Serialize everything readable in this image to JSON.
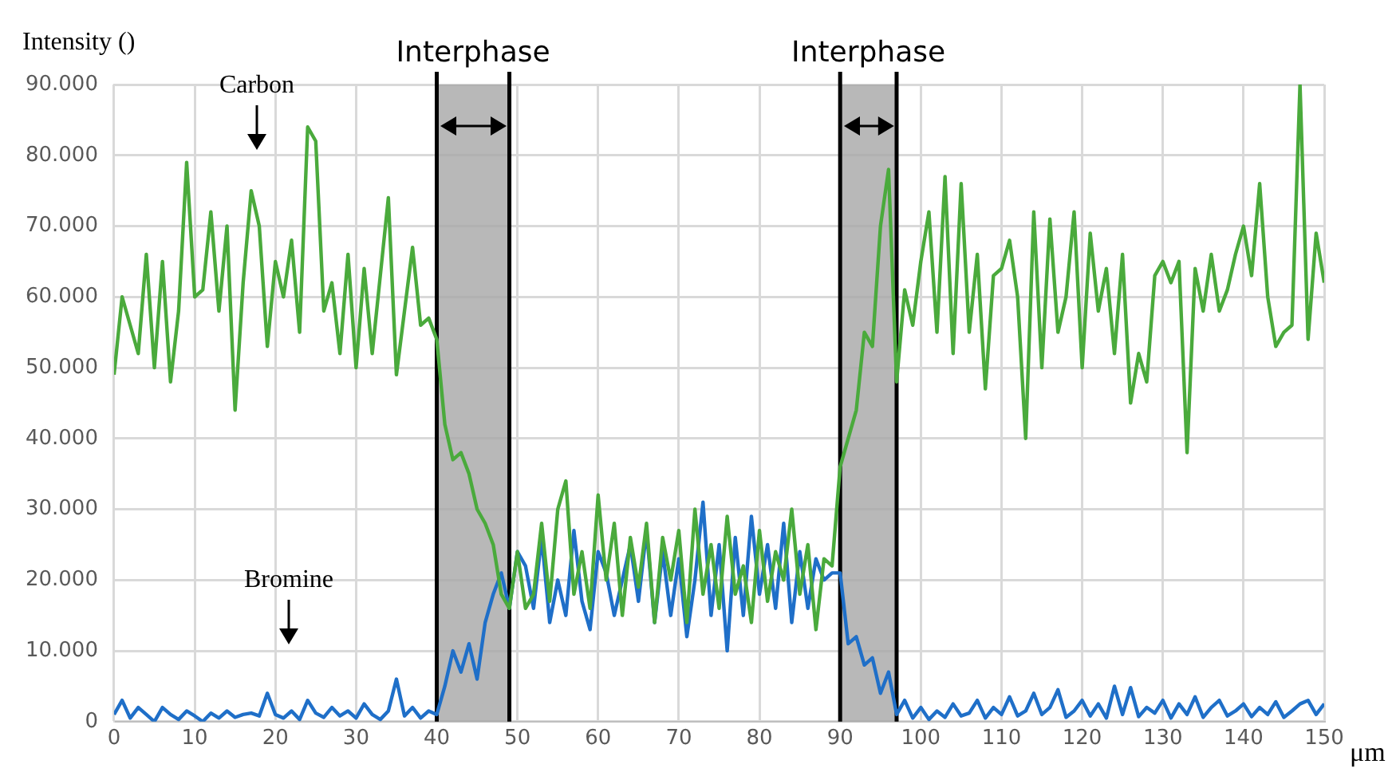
{
  "chart_data": {
    "type": "line",
    "ylabel": "Intensity ()",
    "xlabel": "μm",
    "x": [
      0,
      1,
      2,
      3,
      4,
      5,
      6,
      7,
      8,
      9,
      10,
      11,
      12,
      13,
      14,
      15,
      16,
      17,
      18,
      19,
      20,
      21,
      22,
      23,
      24,
      25,
      26,
      27,
      28,
      29,
      30,
      31,
      32,
      33,
      34,
      35,
      36,
      37,
      38,
      39,
      40,
      41,
      42,
      43,
      44,
      45,
      46,
      47,
      48,
      49,
      50,
      51,
      52,
      53,
      54,
      55,
      56,
      57,
      58,
      59,
      60,
      61,
      62,
      63,
      64,
      65,
      66,
      67,
      68,
      69,
      70,
      71,
      72,
      73,
      74,
      75,
      76,
      77,
      78,
      79,
      80,
      81,
      82,
      83,
      84,
      85,
      86,
      87,
      88,
      89,
      90,
      91,
      92,
      93,
      94,
      95,
      96,
      97,
      98,
      99,
      100,
      101,
      102,
      103,
      104,
      105,
      106,
      107,
      108,
      109,
      110,
      111,
      112,
      113,
      114,
      115,
      116,
      117,
      118,
      119,
      120,
      121,
      122,
      123,
      124,
      125,
      126,
      127,
      128,
      129,
      130,
      131,
      132,
      133,
      134,
      135,
      136,
      137,
      138,
      139,
      140,
      141,
      142,
      143,
      144,
      145,
      146,
      147,
      148,
      149,
      150
    ],
    "series": [
      {
        "color": "#4aaa3c",
        "values": [
          49000,
          60000,
          56000,
          52000,
          66000,
          50000,
          65000,
          48000,
          58000,
          79000,
          60000,
          61000,
          72000,
          58000,
          70000,
          44000,
          62000,
          75000,
          70000,
          53000,
          65000,
          60000,
          68000,
          55000,
          84000,
          82000,
          58000,
          62000,
          52000,
          66000,
          50000,
          64000,
          52000,
          63000,
          74000,
          49000,
          58000,
          67000,
          56000,
          57000,
          54000,
          42000,
          37000,
          38000,
          35000,
          30000,
          28000,
          25000,
          18000,
          16000,
          24000,
          16000,
          18000,
          28000,
          17000,
          30000,
          34000,
          18000,
          24000,
          16000,
          32000,
          20000,
          28000,
          15000,
          26000,
          19000,
          28000,
          14000,
          26000,
          20000,
          27000,
          14000,
          30000,
          18000,
          25000,
          16000,
          29000,
          18000,
          22000,
          14000,
          27000,
          17000,
          24000,
          20000,
          30000,
          18000,
          25000,
          13000,
          23000,
          22000,
          36000,
          40000,
          44000,
          55000,
          53000,
          70000,
          78000,
          48000,
          61000,
          56000,
          65000,
          72000,
          55000,
          77000,
          52000,
          76000,
          55000,
          66000,
          47000,
          63000,
          64000,
          68000,
          60000,
          40000,
          72000,
          50000,
          71000,
          55000,
          60000,
          72000,
          50000,
          69000,
          58000,
          64000,
          52000,
          66000,
          45000,
          52000,
          48000,
          63000,
          65000,
          62000,
          65000,
          38000,
          64000,
          58000,
          66000,
          58000,
          61000,
          66000,
          70000,
          63000,
          76000,
          60000,
          53000,
          55000,
          56000,
          90000,
          54000,
          69000,
          62000
        ]
      },
      {
        "color": "#1f6fc8",
        "values": [
          1000,
          3000,
          500,
          2000,
          1000,
          0,
          2000,
          1000,
          300,
          1500,
          800,
          0,
          1200,
          500,
          1500,
          600,
          1000,
          1200,
          800,
          4000,
          1000,
          500,
          1500,
          300,
          3000,
          1200,
          600,
          2000,
          800,
          1500,
          500,
          2500,
          1000,
          300,
          1500,
          6000,
          800,
          2000,
          500,
          1500,
          1000,
          5000,
          10000,
          7000,
          11000,
          6000,
          14000,
          18000,
          21000,
          16000,
          24000,
          22000,
          16000,
          26000,
          14000,
          20000,
          15000,
          27000,
          17000,
          13000,
          24000,
          21000,
          15000,
          20000,
          25000,
          17000,
          27000,
          14000,
          24000,
          15000,
          23000,
          12000,
          20000,
          31000,
          15000,
          25000,
          10000,
          26000,
          15000,
          29000,
          18000,
          25000,
          16000,
          28000,
          14000,
          24000,
          16000,
          23000,
          20000,
          21000,
          21000,
          11000,
          12000,
          8000,
          9000,
          4000,
          7000,
          1000,
          3000,
          500,
          2000,
          300,
          1500,
          600,
          2500,
          800,
          1200,
          3000,
          500,
          2000,
          1000,
          3500,
          800,
          1500,
          4000,
          1000,
          2000,
          4500,
          600,
          1500,
          3000,
          800,
          2500,
          500,
          5000,
          1000,
          4800,
          700,
          2000,
          1200,
          3000,
          500,
          2500,
          1000,
          3500,
          600,
          2000,
          3000,
          800,
          1500,
          2500,
          700,
          2000,
          1000,
          2800,
          600,
          1500,
          2500,
          3000,
          1000,
          2500
        ]
      }
    ],
    "xlim": [
      0,
      150
    ],
    "xticks": [
      0,
      10,
      20,
      30,
      40,
      50,
      60,
      70,
      80,
      90,
      100,
      110,
      120,
      130,
      140,
      150
    ],
    "ylim": [
      0,
      90000
    ],
    "yticks": [
      0,
      {
        "value": 10000,
        "label": "10.000"
      },
      {
        "value": 20000,
        "label": "20.000"
      },
      {
        "value": 30000,
        "label": "30.000"
      },
      {
        "value": 40000,
        "label": "40.000"
      },
      {
        "value": 50000,
        "label": "50.000"
      },
      {
        "value": 60000,
        "label": "60.000"
      },
      {
        "value": 70000,
        "label": "70.000"
      },
      {
        "value": 80000,
        "label": "80.000"
      },
      {
        "value": 90000,
        "label": "90.000"
      }
    ],
    "grid": true,
    "legend": false,
    "marker": "none",
    "line_style": "solid",
    "bands": [
      {
        "axis": "x",
        "from": 40,
        "to": 49,
        "label": "Interphase",
        "color": "#a6a6a6"
      },
      {
        "axis": "x",
        "from": 90,
        "to": 97,
        "label": "Interphase",
        "color": "#a6a6a6"
      }
    ],
    "annotations": [
      "Carbon",
      "Bromine"
    ]
  }
}
